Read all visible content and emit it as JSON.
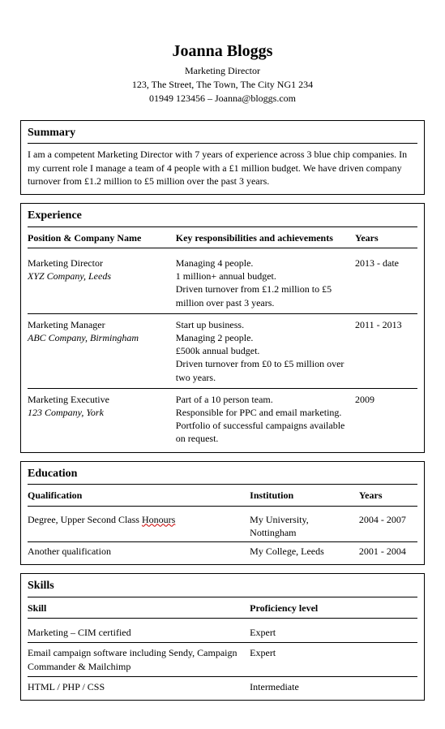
{
  "header": {
    "name": "Joanna Bloggs",
    "role": "Marketing Director",
    "address": "123, The Street, The Town, The City NG1 234",
    "contact": "01949 123456 – Joanna@bloggs.com"
  },
  "summary": {
    "title": "Summary",
    "text": "I am a competent Marketing Director with 7 years of experience across 3 blue chip companies. In my current role I manage a team of 4 people with a £1 million budget. We have driven company turnover from £1.2 million to £5 million over the past 3 years."
  },
  "experience": {
    "title": "Experience",
    "headers": {
      "col1": "Position & Company Name",
      "col2": "Key responsibilities and achievements",
      "col3": "Years"
    },
    "rows": [
      {
        "position": "Marketing Director",
        "company": "XYZ Company, Leeds",
        "resp": [
          "Managing 4 people.",
          "1 million+ annual budget.",
          "Driven turnover from £1.2 million to £5 million over past 3 years."
        ],
        "years": "2013 - date"
      },
      {
        "position": "Marketing Manager",
        "company": "ABC Company, Birmingham",
        "resp": [
          "Start up business.",
          "Managing 2 people.",
          "£500k annual budget.",
          "Driven turnover from £0 to £5 million over two years."
        ],
        "years": "2011 - 2013"
      },
      {
        "position": "Marketing Executive",
        "company": "123 Company, York",
        "resp": [
          "Part of a 10 person team.",
          "Responsible for PPC and email marketing.",
          "Portfolio of successful campaigns available on request."
        ],
        "years": "2009"
      }
    ]
  },
  "education": {
    "title": "Education",
    "headers": {
      "col1": "Qualification",
      "col2": "Institution",
      "col3": "Years"
    },
    "rows": [
      {
        "qual_prefix": "Degree, Upper Second Class ",
        "qual_underlined": "Honours",
        "institution": "My University, Nottingham",
        "years": "2004 - 2007"
      },
      {
        "qual_prefix": "Another qualification",
        "qual_underlined": "",
        "institution": "My College, Leeds",
        "years": "2001 - 2004"
      }
    ]
  },
  "skills": {
    "title": "Skills",
    "headers": {
      "col1": "Skill",
      "col2": "Proficiency level"
    },
    "rows": [
      {
        "skill": "Marketing – CIM certified",
        "level": "Expert"
      },
      {
        "skill": "Email campaign software including Sendy, Campaign Commander & Mailchimp",
        "level": "Expert"
      },
      {
        "skill": "HTML / PHP / CSS",
        "level": "Intermediate"
      }
    ]
  },
  "style": {
    "background_color": "#ffffff",
    "text_color": "#000000",
    "border_color": "#000000",
    "spellcheck_squiggle_color": "#cc0000",
    "name_fontsize": 20,
    "body_fontsize": 12,
    "section_title_fontsize": 14,
    "font_family": "Garamond, Times New Roman, serif"
  }
}
